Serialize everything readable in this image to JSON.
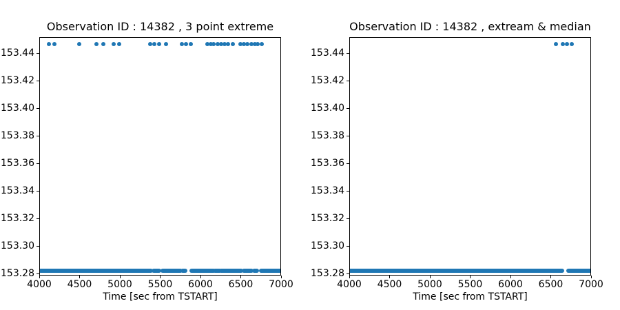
{
  "figure": {
    "background": "#ffffff",
    "marker_color": "#1f77b4",
    "axis_color": "#000000",
    "text_color": "#000000"
  },
  "chart_data": [
    {
      "type": "scatter",
      "title": "Observation ID : 14382 , 3 point extreme",
      "xlabel": "Time [sec from TSTART]",
      "ylabel": "",
      "grid": false,
      "legend": "none",
      "xlim": [
        4000,
        7000
      ],
      "ylim": [
        153.2785,
        153.4515
      ],
      "xticks": [
        4000,
        4500,
        5000,
        5500,
        6000,
        6500,
        7000
      ],
      "xtick_labels": [
        "4000",
        "4500",
        "5000",
        "5500",
        "6000",
        "6500",
        "7000"
      ],
      "yticks": [
        153.28,
        153.3,
        153.32,
        153.34,
        153.36,
        153.38,
        153.4,
        153.42,
        153.44
      ],
      "ytick_labels": [
        "153.28",
        "153.30",
        "153.32",
        "153.34",
        "153.36",
        "153.38",
        "153.40",
        "153.42",
        "153.44"
      ],
      "series": [
        {
          "name": "high-extreme-points",
          "render": "points",
          "y": 153.447,
          "x": [
            4115,
            4180,
            4490,
            4700,
            4785,
            4915,
            4985,
            5365,
            5420,
            5475,
            5560,
            5760,
            5815,
            5870,
            6080,
            6120,
            6155,
            6205,
            6245,
            6290,
            6330,
            6390,
            6485,
            6530,
            6575,
            6620,
            6665,
            6700,
            6755
          ]
        },
        {
          "name": "baseline-points",
          "render": "segments",
          "y": 153.2825,
          "ranges": [
            [
              4005,
              5375
            ],
            [
              5408,
              5480
            ],
            [
              5520,
              5745
            ],
            [
              5765,
              5805
            ],
            [
              5878,
              6152
            ],
            [
              6170,
              6230
            ],
            [
              6248,
              6500
            ],
            [
              6528,
              6628
            ],
            [
              6655,
              6692
            ],
            [
              6742,
              6992
            ]
          ]
        }
      ]
    },
    {
      "type": "scatter",
      "title": "Observation ID : 14382 , extream & median",
      "xlabel": "Time [sec from TSTART]",
      "ylabel": "",
      "grid": false,
      "legend": "none",
      "xlim": [
        4000,
        7000
      ],
      "ylim": [
        153.2785,
        153.4515
      ],
      "xticks": [
        4000,
        4500,
        5000,
        5500,
        6000,
        6500,
        7000
      ],
      "xtick_labels": [
        "4000",
        "4500",
        "5000",
        "5500",
        "6000",
        "6500",
        "7000"
      ],
      "yticks": [
        153.28,
        153.3,
        153.32,
        153.34,
        153.36,
        153.38,
        153.4,
        153.42,
        153.44
      ],
      "ytick_labels": [
        "153.28",
        "153.30",
        "153.32",
        "153.34",
        "153.36",
        "153.38",
        "153.40",
        "153.42",
        "153.44"
      ],
      "series": [
        {
          "name": "high-extreme-points",
          "render": "points",
          "y": 153.447,
          "x": [
            6556,
            6640,
            6695,
            6750
          ]
        },
        {
          "name": "baseline-points",
          "render": "segments",
          "y": 153.2825,
          "ranges": [
            [
              4000,
              6632
            ],
            [
              6709,
              7000
            ]
          ]
        }
      ]
    }
  ]
}
